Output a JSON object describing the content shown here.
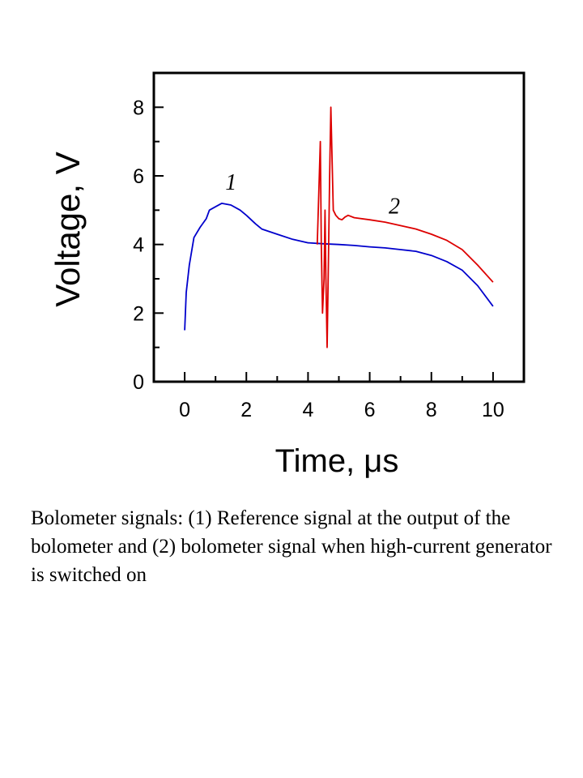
{
  "chart_data": {
    "type": "line",
    "xlabel": "Time, μs",
    "ylabel": "Voltage, V",
    "xlim": [
      -1,
      11
    ],
    "ylim": [
      0,
      9
    ],
    "xticks": [
      "0",
      "2",
      "4",
      "6",
      "8",
      "10"
    ],
    "yticks": [
      "0",
      "2",
      "4",
      "6",
      "8"
    ],
    "grid": false,
    "series": [
      {
        "name": "1",
        "color": "#0000cc",
        "points": [
          [
            0,
            1.5
          ],
          [
            0.05,
            2.6
          ],
          [
            0.15,
            3.4
          ],
          [
            0.3,
            4.2
          ],
          [
            0.5,
            4.5
          ],
          [
            0.7,
            4.75
          ],
          [
            0.8,
            5.0
          ],
          [
            1.0,
            5.1
          ],
          [
            1.2,
            5.2
          ],
          [
            1.5,
            5.15
          ],
          [
            1.8,
            5.0
          ],
          [
            2.0,
            4.85
          ],
          [
            2.3,
            4.6
          ],
          [
            2.5,
            4.45
          ],
          [
            3.0,
            4.3
          ],
          [
            3.5,
            4.15
          ],
          [
            4.0,
            4.05
          ],
          [
            4.5,
            4.02
          ],
          [
            5.0,
            4.0
          ],
          [
            5.5,
            3.97
          ],
          [
            6.0,
            3.93
          ],
          [
            6.5,
            3.9
          ],
          [
            7.0,
            3.85
          ],
          [
            7.5,
            3.8
          ],
          [
            8.0,
            3.68
          ],
          [
            8.5,
            3.5
          ],
          [
            9.0,
            3.25
          ],
          [
            9.5,
            2.8
          ],
          [
            10.0,
            2.2
          ]
        ]
      },
      {
        "name": "2",
        "color": "#dd0000",
        "points": [
          [
            4.3,
            4.0
          ],
          [
            4.35,
            5.5
          ],
          [
            4.4,
            7.0
          ],
          [
            4.43,
            4.0
          ],
          [
            4.47,
            2.0
          ],
          [
            4.52,
            3.0
          ],
          [
            4.55,
            5.0
          ],
          [
            4.58,
            3.0
          ],
          [
            4.62,
            1.0
          ],
          [
            4.66,
            3.5
          ],
          [
            4.7,
            6.0
          ],
          [
            4.74,
            8.0
          ],
          [
            4.78,
            6.5
          ],
          [
            4.82,
            5.0
          ],
          [
            4.9,
            4.85
          ],
          [
            5.0,
            4.75
          ],
          [
            5.1,
            4.72
          ],
          [
            5.2,
            4.8
          ],
          [
            5.3,
            4.85
          ],
          [
            5.5,
            4.78
          ],
          [
            6.0,
            4.72
          ],
          [
            6.5,
            4.65
          ],
          [
            7.0,
            4.55
          ],
          [
            7.5,
            4.45
          ],
          [
            8.0,
            4.3
          ],
          [
            8.5,
            4.12
          ],
          [
            9.0,
            3.85
          ],
          [
            9.5,
            3.4
          ],
          [
            10.0,
            2.9
          ]
        ]
      }
    ],
    "annotations": [
      {
        "text": "1",
        "x": 1.5,
        "y": 5.6
      },
      {
        "text": "2",
        "x": 6.8,
        "y": 4.9
      }
    ]
  },
  "caption": "Bolometer signals: (1) Reference signal at the output of the bolometer and (2) bolometer signal when high-current generator is switched on"
}
